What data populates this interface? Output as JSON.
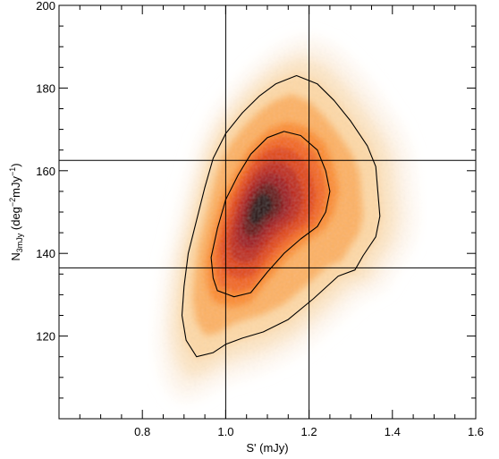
{
  "chart_data": {
    "type": "heatmap",
    "xlabel": "S' (mJy)",
    "ylabel_main": "N",
    "ylabel_sub": "3mJy",
    "ylabel_unit_a": " (deg",
    "ylabel_exp_a": "−2",
    "ylabel_unit_b": "mJy",
    "ylabel_exp_b": "−1",
    "ylabel_close": ")",
    "xlim": [
      0.6,
      1.6
    ],
    "ylim": [
      100,
      200
    ],
    "xticks": [
      0.8,
      1.0,
      1.2,
      1.4,
      1.6
    ],
    "xtick_labels": [
      "0.8",
      "1.0",
      "1.2",
      "1.4",
      "1.6"
    ],
    "yticks": [
      120,
      140,
      160,
      180,
      200
    ],
    "ytick_labels": [
      "120",
      "140",
      "160",
      "180",
      "200"
    ],
    "vertical_lines": [
      1.0,
      1.2
    ],
    "horizontal_lines": [
      136.5,
      162.5
    ],
    "peak": {
      "x": 1.08,
      "y": 151
    },
    "color_scale": [
      "#ffffff",
      "#fdd9a8",
      "#fb8c2a",
      "#e04810",
      "#a0141e",
      "#2a0606"
    ],
    "contours": [
      {
        "name": "outer",
        "points": [
          [
            0.93,
            115
          ],
          [
            0.97,
            116
          ],
          [
            1.0,
            118
          ],
          [
            1.04,
            119.5
          ],
          [
            1.09,
            121
          ],
          [
            1.15,
            124
          ],
          [
            1.21,
            129
          ],
          [
            1.27,
            134.5
          ],
          [
            1.31,
            136
          ],
          [
            1.33,
            139.5
          ],
          [
            1.36,
            144
          ],
          [
            1.37,
            149
          ],
          [
            1.365,
            155
          ],
          [
            1.36,
            161
          ],
          [
            1.34,
            166
          ],
          [
            1.3,
            172
          ],
          [
            1.26,
            177
          ],
          [
            1.22,
            181
          ],
          [
            1.17,
            183
          ],
          [
            1.12,
            181
          ],
          [
            1.08,
            178
          ],
          [
            1.04,
            174
          ],
          [
            1.0,
            169
          ],
          [
            0.97,
            163
          ],
          [
            0.95,
            156
          ],
          [
            0.93,
            148
          ],
          [
            0.91,
            140
          ],
          [
            0.9,
            132
          ],
          [
            0.895,
            125
          ],
          [
            0.905,
            119
          ]
        ]
      },
      {
        "name": "inner",
        "points": [
          [
            0.98,
            131
          ],
          [
            1.02,
            129.5
          ],
          [
            1.06,
            130.5
          ],
          [
            1.1,
            135.5
          ],
          [
            1.14,
            140
          ],
          [
            1.18,
            143.5
          ],
          [
            1.22,
            146.5
          ],
          [
            1.24,
            150
          ],
          [
            1.25,
            155
          ],
          [
            1.24,
            160
          ],
          [
            1.22,
            165
          ],
          [
            1.18,
            168.5
          ],
          [
            1.14,
            169.5
          ],
          [
            1.1,
            168
          ],
          [
            1.06,
            164
          ],
          [
            1.03,
            159
          ],
          [
            1.0,
            153
          ],
          [
            0.98,
            146
          ],
          [
            0.965,
            139
          ],
          [
            0.97,
            134
          ]
        ]
      }
    ],
    "grid": false,
    "legend": "none"
  }
}
